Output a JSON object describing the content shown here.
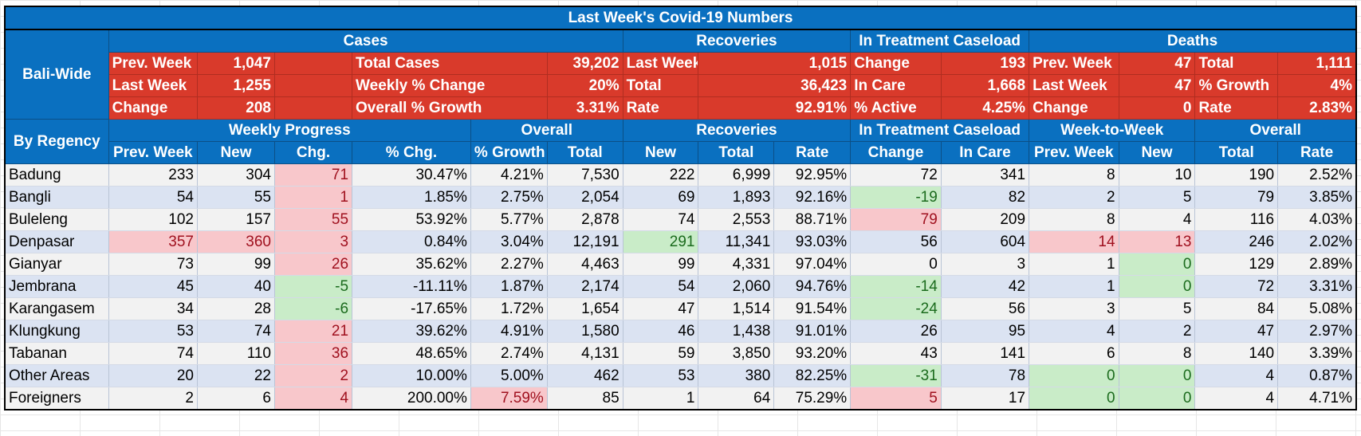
{
  "title": "Last Week's Covid-19 Numbers",
  "bali_wide": {
    "label": "Bali-Wide",
    "groups": [
      "Cases",
      "Recoveries",
      "In Treatment Caseload",
      "Deaths"
    ],
    "rows": [
      [
        "Prev. Week",
        "1,047",
        "",
        "Total Cases",
        "39,202",
        "Last Week",
        "1,015",
        "Change",
        "193",
        "Prev. Week",
        "47",
        "Total",
        "1,111"
      ],
      [
        "Last Week",
        "1,255",
        "",
        "Weekly % Change",
        "20%",
        "Total",
        "36,423",
        "In Care",
        "1,668",
        "Last Week",
        "47",
        "% Growth",
        "4%"
      ],
      [
        "Change",
        "208",
        "",
        "Overall % Growth",
        "3.31%",
        "Rate",
        "92.91%",
        "% Active",
        "4.25%",
        "Change",
        "0",
        "Rate",
        "2.83%"
      ]
    ]
  },
  "by_regency": {
    "label": "By Regency",
    "groups": [
      "Weekly Progress",
      "Overall",
      "Recoveries",
      "In Treatment Caseload",
      "Week-to-Week",
      "Overall"
    ],
    "columns": [
      "Prev. Week",
      "New",
      "Chg.",
      "% Chg.",
      "% Growth",
      "Total",
      "New",
      "Total",
      "Rate",
      "Change",
      "In Care",
      "Prev. Week",
      "New",
      "Total",
      "Rate"
    ],
    "rows": [
      {
        "name": "Badung",
        "cells": [
          "233",
          "304",
          "71",
          "30.47%",
          "4.21%",
          "7,530",
          "222",
          "6,999",
          "92.95%",
          "72",
          "341",
          "8",
          "10",
          "190",
          "2.52%"
        ],
        "hl": {
          "2": "pos"
        }
      },
      {
        "name": "Bangli",
        "cells": [
          "54",
          "55",
          "1",
          "1.85%",
          "2.75%",
          "2,054",
          "69",
          "1,893",
          "92.16%",
          "-19",
          "82",
          "2",
          "5",
          "79",
          "3.85%"
        ],
        "hl": {
          "2": "pos",
          "9": "neg"
        }
      },
      {
        "name": "Buleleng",
        "cells": [
          "102",
          "157",
          "55",
          "53.92%",
          "5.77%",
          "2,878",
          "74",
          "2,553",
          "88.71%",
          "79",
          "209",
          "8",
          "4",
          "116",
          "4.03%"
        ],
        "hl": {
          "2": "pos",
          "9": "pos"
        }
      },
      {
        "name": "Denpasar",
        "cells": [
          "357",
          "360",
          "3",
          "0.84%",
          "3.04%",
          "12,191",
          "291",
          "11,341",
          "93.03%",
          "56",
          "604",
          "14",
          "13",
          "246",
          "2.02%"
        ],
        "hl": {
          "0": "pos",
          "1": "pos",
          "2": "pos",
          "6": "neg",
          "11": "pos",
          "12": "pos"
        }
      },
      {
        "name": "Gianyar",
        "cells": [
          "73",
          "99",
          "26",
          "35.62%",
          "2.27%",
          "4,463",
          "99",
          "4,331",
          "97.04%",
          "0",
          "3",
          "1",
          "0",
          "129",
          "2.89%"
        ],
        "hl": {
          "2": "pos",
          "12": "neg"
        }
      },
      {
        "name": "Jembrana",
        "cells": [
          "45",
          "40",
          "-5",
          "-11.11%",
          "1.87%",
          "2,174",
          "54",
          "2,060",
          "94.76%",
          "-14",
          "42",
          "1",
          "0",
          "72",
          "3.31%"
        ],
        "hl": {
          "2": "neg",
          "9": "neg",
          "12": "neg"
        }
      },
      {
        "name": "Karangasem",
        "cells": [
          "34",
          "28",
          "-6",
          "-17.65%",
          "1.72%",
          "1,654",
          "47",
          "1,514",
          "91.54%",
          "-24",
          "56",
          "3",
          "5",
          "84",
          "5.08%"
        ],
        "hl": {
          "2": "neg",
          "9": "neg"
        }
      },
      {
        "name": "Klungkung",
        "cells": [
          "53",
          "74",
          "21",
          "39.62%",
          "4.91%",
          "1,580",
          "46",
          "1,438",
          "91.01%",
          "26",
          "95",
          "4",
          "2",
          "47",
          "2.97%"
        ],
        "hl": {
          "2": "pos"
        }
      },
      {
        "name": "Tabanan",
        "cells": [
          "74",
          "110",
          "36",
          "48.65%",
          "2.74%",
          "4,131",
          "59",
          "3,850",
          "93.20%",
          "43",
          "141",
          "6",
          "8",
          "140",
          "3.39%"
        ],
        "hl": {
          "2": "pos"
        }
      },
      {
        "name": "Other Areas",
        "cells": [
          "20",
          "22",
          "2",
          "10.00%",
          "5.00%",
          "462",
          "53",
          "380",
          "82.25%",
          "-31",
          "78",
          "0",
          "0",
          "4",
          "0.87%"
        ],
        "hl": {
          "2": "pos",
          "9": "neg",
          "11": "neg",
          "12": "neg"
        }
      },
      {
        "name": "Foreigners",
        "cells": [
          "2",
          "6",
          "4",
          "200.00%",
          "7.59%",
          "85",
          "1",
          "64",
          "75.29%",
          "5",
          "17",
          "0",
          "0",
          "4",
          "4.71%"
        ],
        "hl": {
          "2": "pos",
          "4": "pos",
          "9": "pos",
          "11": "neg",
          "12": "neg"
        }
      }
    ]
  }
}
